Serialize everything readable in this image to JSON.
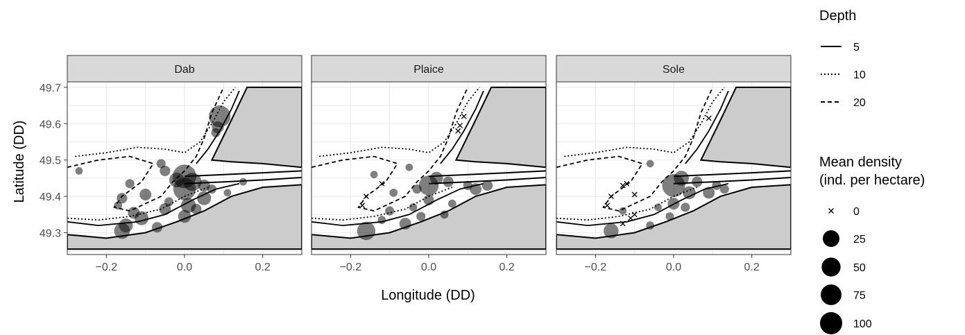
{
  "chart_data": {
    "type": "scatter",
    "facets": [
      {
        "name": "Dab",
        "points": [
          {
            "x": 0.09,
            "y": 49.62,
            "d": 85
          },
          {
            "x": 0.085,
            "y": 49.59,
            "d": 25
          },
          {
            "x": 0.08,
            "y": 49.575,
            "d": 15
          },
          {
            "x": -0.27,
            "y": 49.47,
            "d": 10
          },
          {
            "x": -0.06,
            "y": 49.49,
            "d": 15
          },
          {
            "x": -0.14,
            "y": 49.435,
            "d": 15
          },
          {
            "x": -0.05,
            "y": 49.47,
            "d": 20
          },
          {
            "x": 0.0,
            "y": 49.455,
            "d": 100
          },
          {
            "x": -0.02,
            "y": 49.445,
            "d": 40
          },
          {
            "x": 0.02,
            "y": 49.44,
            "d": 60
          },
          {
            "x": 0.05,
            "y": 49.43,
            "d": 25
          },
          {
            "x": 0.0,
            "y": 49.42,
            "d": 90
          },
          {
            "x": -0.16,
            "y": 49.395,
            "d": 20
          },
          {
            "x": -0.17,
            "y": 49.375,
            "d": 12
          },
          {
            "x": -0.1,
            "y": 49.405,
            "d": 25
          },
          {
            "x": -0.04,
            "y": 49.385,
            "d": 15
          },
          {
            "x": 0.05,
            "y": 49.395,
            "d": 35
          },
          {
            "x": 0.01,
            "y": 49.375,
            "d": 40
          },
          {
            "x": 0.03,
            "y": 49.365,
            "d": 20
          },
          {
            "x": -0.13,
            "y": 49.355,
            "d": 25
          },
          {
            "x": -0.11,
            "y": 49.34,
            "d": 35
          },
          {
            "x": -0.05,
            "y": 49.365,
            "d": 25
          },
          {
            "x": 0.0,
            "y": 49.345,
            "d": 30
          },
          {
            "x": -0.15,
            "y": 49.32,
            "d": 35
          },
          {
            "x": -0.16,
            "y": 49.305,
            "d": 45
          },
          {
            "x": -0.07,
            "y": 49.315,
            "d": 20
          },
          {
            "x": 0.07,
            "y": 49.42,
            "d": 15
          },
          {
            "x": 0.11,
            "y": 49.41,
            "d": 10
          },
          {
            "x": 0.15,
            "y": 49.44,
            "d": 10
          }
        ]
      },
      {
        "name": "Plaice",
        "points": [
          {
            "x": 0.09,
            "y": 49.62,
            "d": 0
          },
          {
            "x": 0.08,
            "y": 49.595,
            "d": 0
          },
          {
            "x": 0.075,
            "y": 49.58,
            "d": 0
          },
          {
            "x": -0.12,
            "y": 49.435,
            "d": 0
          },
          {
            "x": -0.16,
            "y": 49.4,
            "d": 0
          },
          {
            "x": -0.17,
            "y": 49.375,
            "d": 0
          },
          {
            "x": -0.05,
            "y": 49.48,
            "d": 10
          },
          {
            "x": -0.14,
            "y": 49.46,
            "d": 10
          },
          {
            "x": -0.09,
            "y": 49.41,
            "d": 12
          },
          {
            "x": 0.0,
            "y": 49.43,
            "d": 70
          },
          {
            "x": 0.02,
            "y": 49.45,
            "d": 30
          },
          {
            "x": 0.05,
            "y": 49.44,
            "d": 20
          },
          {
            "x": -0.03,
            "y": 49.42,
            "d": 15
          },
          {
            "x": 0.1,
            "y": 49.43,
            "d": 15
          },
          {
            "x": 0.12,
            "y": 49.42,
            "d": 25
          },
          {
            "x": 0.15,
            "y": 49.43,
            "d": 20
          },
          {
            "x": 0.0,
            "y": 49.39,
            "d": 20
          },
          {
            "x": 0.06,
            "y": 49.38,
            "d": 12
          },
          {
            "x": -0.04,
            "y": 49.37,
            "d": 12
          },
          {
            "x": -0.1,
            "y": 49.36,
            "d": 15
          },
          {
            "x": -0.02,
            "y": 49.345,
            "d": 15
          },
          {
            "x": 0.04,
            "y": 49.35,
            "d": 12
          },
          {
            "x": -0.06,
            "y": 49.325,
            "d": 25
          },
          {
            "x": -0.12,
            "y": 49.335,
            "d": 12
          },
          {
            "x": -0.16,
            "y": 49.305,
            "d": 60
          }
        ]
      },
      {
        "name": "Sole",
        "points": [
          {
            "x": 0.09,
            "y": 49.615,
            "d": 0
          },
          {
            "x": -0.12,
            "y": 49.435,
            "d": 0
          },
          {
            "x": -0.13,
            "y": 49.43,
            "d": 0
          },
          {
            "x": -0.1,
            "y": 49.405,
            "d": 0
          },
          {
            "x": -0.16,
            "y": 49.4,
            "d": 0
          },
          {
            "x": -0.17,
            "y": 49.375,
            "d": 0
          },
          {
            "x": -0.1,
            "y": 49.35,
            "d": 0
          },
          {
            "x": -0.11,
            "y": 49.34,
            "d": 0
          },
          {
            "x": -0.13,
            "y": 49.325,
            "d": 0
          },
          {
            "x": -0.06,
            "y": 49.49,
            "d": 10
          },
          {
            "x": -0.13,
            "y": 49.36,
            "d": 10
          },
          {
            "x": -0.04,
            "y": 49.37,
            "d": 10
          },
          {
            "x": 0.0,
            "y": 49.43,
            "d": 95
          },
          {
            "x": 0.02,
            "y": 49.45,
            "d": 40
          },
          {
            "x": 0.04,
            "y": 49.41,
            "d": 30
          },
          {
            "x": 0.06,
            "y": 49.44,
            "d": 20
          },
          {
            "x": 0.09,
            "y": 49.41,
            "d": 25
          },
          {
            "x": 0.11,
            "y": 49.43,
            "d": 15
          },
          {
            "x": 0.13,
            "y": 49.42,
            "d": 15
          },
          {
            "x": 0.0,
            "y": 49.38,
            "d": 25
          },
          {
            "x": 0.03,
            "y": 49.37,
            "d": 15
          },
          {
            "x": -0.01,
            "y": 49.345,
            "d": 12
          },
          {
            "x": -0.06,
            "y": 49.32,
            "d": 12
          },
          {
            "x": -0.16,
            "y": 49.305,
            "d": 40
          }
        ]
      }
    ],
    "xlabel": "Longitude (DD)",
    "ylabel": "Latitude (DD)",
    "xlim": [
      -0.3,
      0.3
    ],
    "ylim": [
      49.24,
      49.715
    ],
    "xticks": [
      "−0.2",
      "0.0",
      "0.2"
    ],
    "xtick_values": [
      -0.2,
      0.0,
      0.2
    ],
    "yticks": [
      "49.3",
      "49.4",
      "49.5",
      "49.6",
      "49.7"
    ],
    "ytick_values": [
      49.3,
      49.4,
      49.5,
      49.6,
      49.7
    ],
    "grid": true,
    "legend_placement": "right",
    "legend": {
      "depth_title": "Depth",
      "depth_entries": [
        {
          "label": "5",
          "linetype": "solid"
        },
        {
          "label": "10",
          "linetype": "dotted"
        },
        {
          "label": "20",
          "linetype": "dashed"
        }
      ],
      "density_title_line1": "Mean density",
      "density_title_line2": "(ind. per hectare)",
      "density_entries": [
        {
          "label": "0",
          "value": 0,
          "symbol": "cross"
        },
        {
          "label": "25",
          "value": 25,
          "symbol": "circle"
        },
        {
          "label": "50",
          "value": 50,
          "symbol": "circle"
        },
        {
          "label": "75",
          "value": 75,
          "symbol": "circle"
        },
        {
          "label": "100",
          "value": 100,
          "symbol": "circle"
        }
      ]
    },
    "colors": {
      "land": "#cccccc",
      "strip": "#d9d9d9",
      "points": "#000000",
      "grid": "#ebebeb"
    }
  }
}
